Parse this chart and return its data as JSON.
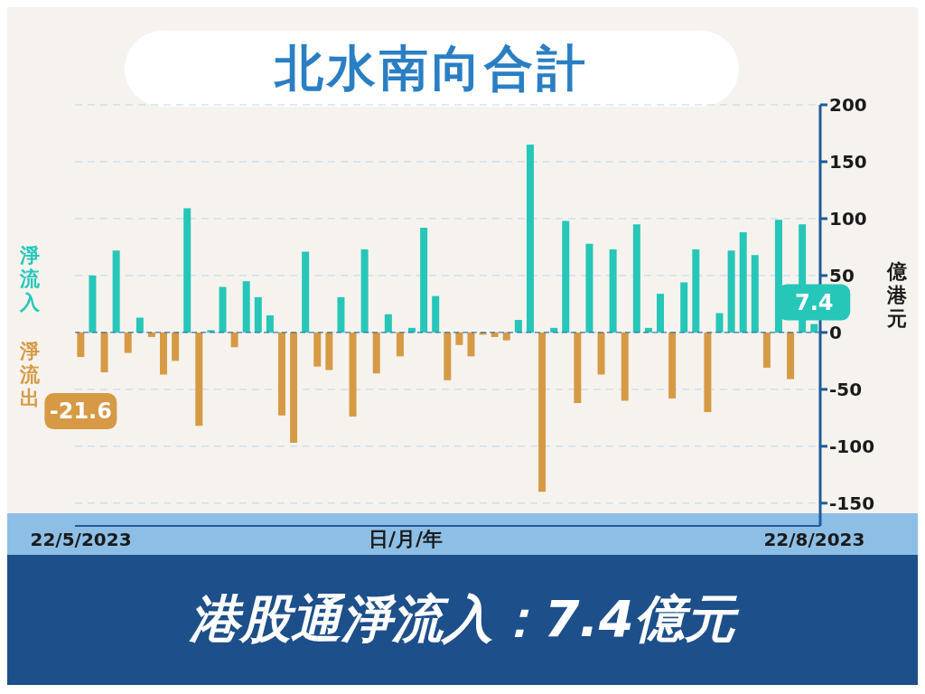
{
  "chart_data": {
    "type": "bar",
    "title": "北水南向合計",
    "xlabel": "日/月/年",
    "ylabel": "億港元",
    "categories": [
      "22/5/2023",
      null,
      null,
      null,
      null,
      null,
      null,
      null,
      null,
      null,
      null,
      null,
      null,
      null,
      null,
      null,
      null,
      null,
      null,
      null,
      null,
      null,
      null,
      null,
      null,
      null,
      null,
      null,
      null,
      null,
      null,
      null,
      null,
      null,
      null,
      null,
      null,
      null,
      null,
      null,
      null,
      null,
      null,
      null,
      null,
      null,
      null,
      null,
      null,
      null,
      null,
      null,
      null,
      null,
      null,
      null,
      null,
      null,
      null,
      null,
      null,
      null,
      "22/8/2023"
    ],
    "values": [
      -21.6,
      50,
      -35,
      72,
      -18,
      13,
      -4,
      -37,
      -25,
      109,
      -82,
      2,
      40,
      -13,
      45,
      31,
      15,
      -73,
      -97,
      71,
      -30,
      -33,
      31,
      -74,
      73,
      -36,
      16,
      -21,
      4,
      92,
      32,
      -42,
      -11,
      -21,
      -2,
      -4,
      -7,
      11,
      165,
      -140,
      4,
      98,
      -62,
      78,
      -37,
      73,
      -60,
      95,
      4,
      34,
      -58,
      44,
      73,
      -70,
      17,
      72,
      88,
      68,
      -31,
      99,
      -41,
      95,
      7.4
    ],
    "colors": [
      "#d69a45",
      "#26c6b9",
      "#d69a45",
      "#26c6b9",
      "#d69a45",
      "#26c6b9",
      "#d69a45",
      "#d69a45",
      "#d69a45",
      "#26c6b9",
      "#d69a45",
      "#26c6b9",
      "#26c6b9",
      "#d69a45",
      "#26c6b9",
      "#26c6b9",
      "#26c6b9",
      "#d69a45",
      "#d69a45",
      "#26c6b9",
      "#d69a45",
      "#d69a45",
      "#26c6b9",
      "#d69a45",
      "#26c6b9",
      "#d69a45",
      "#26c6b9",
      "#d69a45",
      "#26c6b9",
      "#26c6b9",
      "#26c6b9",
      "#d69a45",
      "#d69a45",
      "#d69a45",
      "#d69a45",
      "#d69a45",
      "#d69a45",
      "#26c6b9",
      "#26c6b9",
      "#d69a45",
      "#26c6b9",
      "#26c6b9",
      "#d69a45",
      "#26c6b9",
      "#d69a45",
      "#26c6b9",
      "#d69a45",
      "#26c6b9",
      "#26c6b9",
      "#26c6b9",
      "#d69a45",
      "#26c6b9",
      "#26c6b9",
      "#d69a45",
      "#26c6b9",
      "#26c6b9",
      "#26c6b9",
      "#26c6b9",
      "#d69a45",
      "#26c6b9",
      "#d69a45",
      "#26c6b9",
      "#26c6b9"
    ],
    "value_labels": [
      "-21.6",
      null,
      null,
      null,
      null,
      null,
      null,
      null,
      null,
      null,
      null,
      null,
      null,
      null,
      null,
      null,
      null,
      null,
      null,
      null,
      null,
      null,
      null,
      null,
      null,
      null,
      null,
      null,
      null,
      null,
      null,
      null,
      null,
      null,
      null,
      null,
      null,
      null,
      null,
      null,
      null,
      null,
      null,
      null,
      null,
      null,
      null,
      null,
      null,
      null,
      null,
      null,
      null,
      null,
      null,
      null,
      null,
      null,
      null,
      null,
      null,
      null,
      "7.4"
    ],
    "ylim": [
      -170,
      200
    ],
    "yticks": [
      -150,
      -100,
      -50,
      0,
      50,
      100,
      150,
      200
    ],
    "grid": "y",
    "ref_lines": [
      {
        "axis": "y",
        "value": 0,
        "color": "#1f5c99",
        "line_style": "dashed"
      }
    ],
    "annotations": [
      "淨流入",
      "淨流出",
      "港股通淨流入：7.4億元"
    ]
  }
}
